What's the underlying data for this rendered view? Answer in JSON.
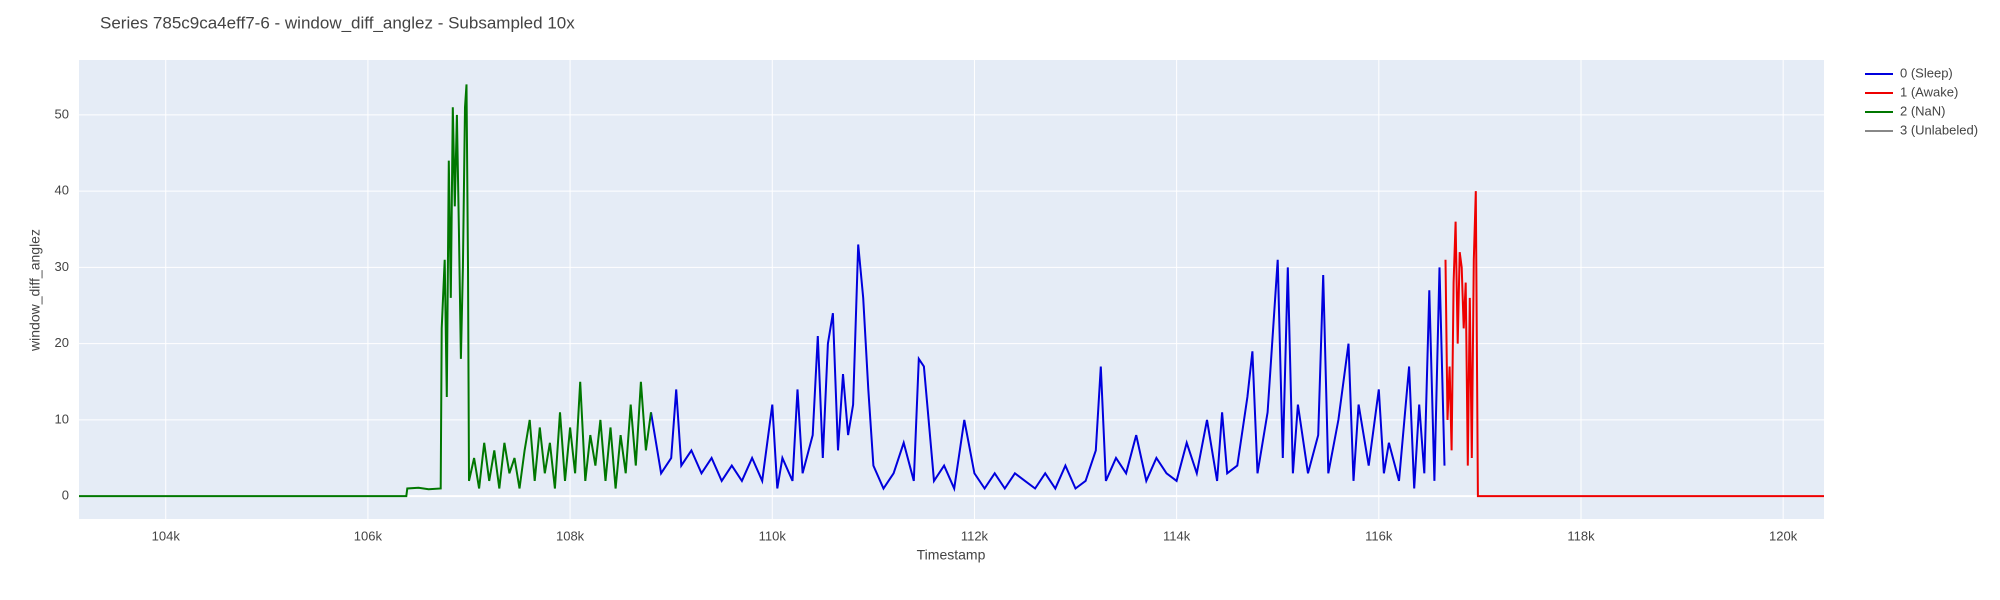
{
  "chart_data": {
    "type": "line",
    "title": "Series 785c9ca4eff7-6 - window_diff_anglez - Subsampled 10x",
    "x_label": "Timestamp",
    "y_label": "window_diff_anglez",
    "xlim": [
      103142,
      120404
    ],
    "ylim": [
      -3,
      57.2
    ],
    "xticks": [
      {
        "value": 104000,
        "label": "104k"
      },
      {
        "value": 106000,
        "label": "106k"
      },
      {
        "value": 108000,
        "label": "108k"
      },
      {
        "value": 110000,
        "label": "110k"
      },
      {
        "value": 112000,
        "label": "112k"
      },
      {
        "value": 114000,
        "label": "114k"
      },
      {
        "value": 116000,
        "label": "116k"
      },
      {
        "value": 118000,
        "label": "118k"
      },
      {
        "value": 120000,
        "label": "120k"
      }
    ],
    "yticks": [
      0,
      10,
      20,
      30,
      40,
      50
    ],
    "grid": true,
    "legend": "right",
    "series": [
      {
        "name": "0 (Sleep)",
        "color": "#0000dd",
        "x": [
          108800,
          108900,
          109000,
          109050,
          109100,
          109200,
          109300,
          109400,
          109500,
          109600,
          109700,
          109800,
          109900,
          110000,
          110050,
          110100,
          110200,
          110250,
          110300,
          110400,
          110450,
          110500,
          110550,
          110600,
          110650,
          110700,
          110750,
          110800,
          110850,
          110900,
          110950,
          111000,
          111100,
          111200,
          111300,
          111400,
          111450,
          111500,
          111600,
          111700,
          111800,
          111900,
          112000,
          112100,
          112200,
          112300,
          112400,
          112500,
          112600,
          112700,
          112800,
          112900,
          113000,
          113100,
          113200,
          113250,
          113300,
          113400,
          113500,
          113600,
          113700,
          113800,
          113900,
          114000,
          114100,
          114200,
          114300,
          114400,
          114450,
          114500,
          114600,
          114700,
          114750,
          114800,
          114900,
          115000,
          115050,
          115100,
          115150,
          115200,
          115300,
          115400,
          115450,
          115500,
          115600,
          115700,
          115750,
          115800,
          115900,
          116000,
          116050,
          116100,
          116200,
          116300,
          116350,
          116400,
          116450,
          116500,
          116550,
          116600,
          116650
        ],
        "values": [
          11,
          3,
          5,
          14,
          4,
          6,
          3,
          5,
          2,
          4,
          2,
          5,
          2,
          12,
          1,
          5,
          2,
          14,
          3,
          8,
          21,
          5,
          20,
          24,
          6,
          16,
          8,
          12,
          33,
          26,
          14,
          4,
          1,
          3,
          7,
          2,
          18,
          17,
          2,
          4,
          1,
          10,
          3,
          1,
          3,
          1,
          3,
          2,
          1,
          3,
          1,
          4,
          1,
          2,
          6,
          17,
          2,
          5,
          3,
          8,
          2,
          5,
          3,
          2,
          7,
          3,
          10,
          2,
          11,
          3,
          4,
          13,
          19,
          3,
          11,
          31,
          5,
          30,
          3,
          12,
          3,
          8,
          29,
          3,
          10,
          20,
          2,
          12,
          4,
          14,
          3,
          7,
          2,
          17,
          1,
          12,
          3,
          27,
          2,
          30,
          4
        ]
      },
      {
        "name": "1 (Awake)",
        "color": "#ee0000",
        "x": [
          116660,
          116680,
          116700,
          116720,
          116740,
          116760,
          116780,
          116800,
          116820,
          116840,
          116860,
          116880,
          116900,
          116920,
          116940,
          116960,
          116980,
          120404
        ],
        "values": [
          31,
          10,
          17,
          6,
          28,
          36,
          20,
          32,
          30,
          22,
          28,
          4,
          26,
          5,
          31,
          40,
          0,
          0
        ]
      },
      {
        "name": "2 (NaN)",
        "color": "#007700",
        "x": [
          103142,
          106380,
          106390,
          106500,
          106600,
          106720,
          106730,
          106760,
          106780,
          106800,
          106820,
          106840,
          106860,
          106880,
          106900,
          106920,
          106940,
          106960,
          106975,
          106990,
          107000,
          107050,
          107100,
          107150,
          107200,
          107250,
          107300,
          107350,
          107400,
          107450,
          107500,
          107550,
          107600,
          107650,
          107700,
          107750,
          107800,
          107850,
          107900,
          107950,
          108000,
          108050,
          108100,
          108150,
          108200,
          108250,
          108300,
          108350,
          108400,
          108450,
          108500,
          108550,
          108600,
          108650,
          108700,
          108750,
          108800
        ],
        "values": [
          0,
          0,
          1,
          1.1,
          0.9,
          1,
          22,
          31,
          13,
          44,
          26,
          51,
          38,
          50,
          35,
          18,
          30,
          51,
          54,
          30,
          2,
          5,
          1,
          7,
          2,
          6,
          1,
          7,
          3,
          5,
          1,
          6,
          10,
          2,
          9,
          3,
          7,
          1,
          11,
          2,
          9,
          3,
          15,
          2,
          8,
          4,
          10,
          2,
          9,
          1,
          8,
          3,
          12,
          4,
          15,
          6,
          11
        ]
      },
      {
        "name": "3 (Unlabeled)",
        "color": "#888888",
        "x": [],
        "values": []
      }
    ]
  }
}
